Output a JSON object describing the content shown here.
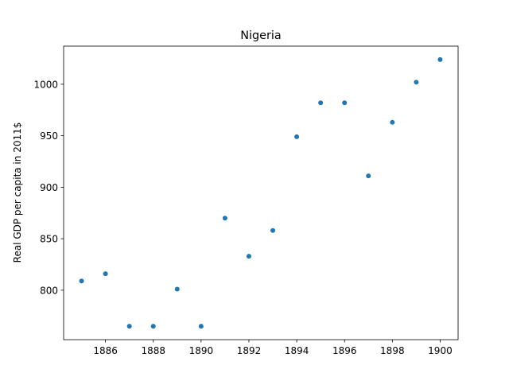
{
  "chart_data": {
    "type": "scatter",
    "title": "Nigeria",
    "xlabel": "",
    "ylabel": "Real GDP per capita in 2011$",
    "x": [
      1885,
      1886,
      1887,
      1888,
      1889,
      1890,
      1891,
      1892,
      1893,
      1894,
      1895,
      1896,
      1897,
      1898,
      1899,
      1900
    ],
    "y": [
      809,
      816,
      765,
      765,
      801,
      765,
      870,
      833,
      858,
      949,
      982,
      982,
      911,
      963,
      1002,
      1024
    ],
    "xlim": [
      1884.25,
      1900.75
    ],
    "ylim": [
      752,
      1037
    ],
    "xticks": [
      1886,
      1888,
      1890,
      1892,
      1894,
      1896,
      1898,
      1900
    ],
    "yticks": [
      800,
      850,
      900,
      950,
      1000
    ],
    "grid": false,
    "legend": "none",
    "marker_color": "#1f77b4"
  }
}
